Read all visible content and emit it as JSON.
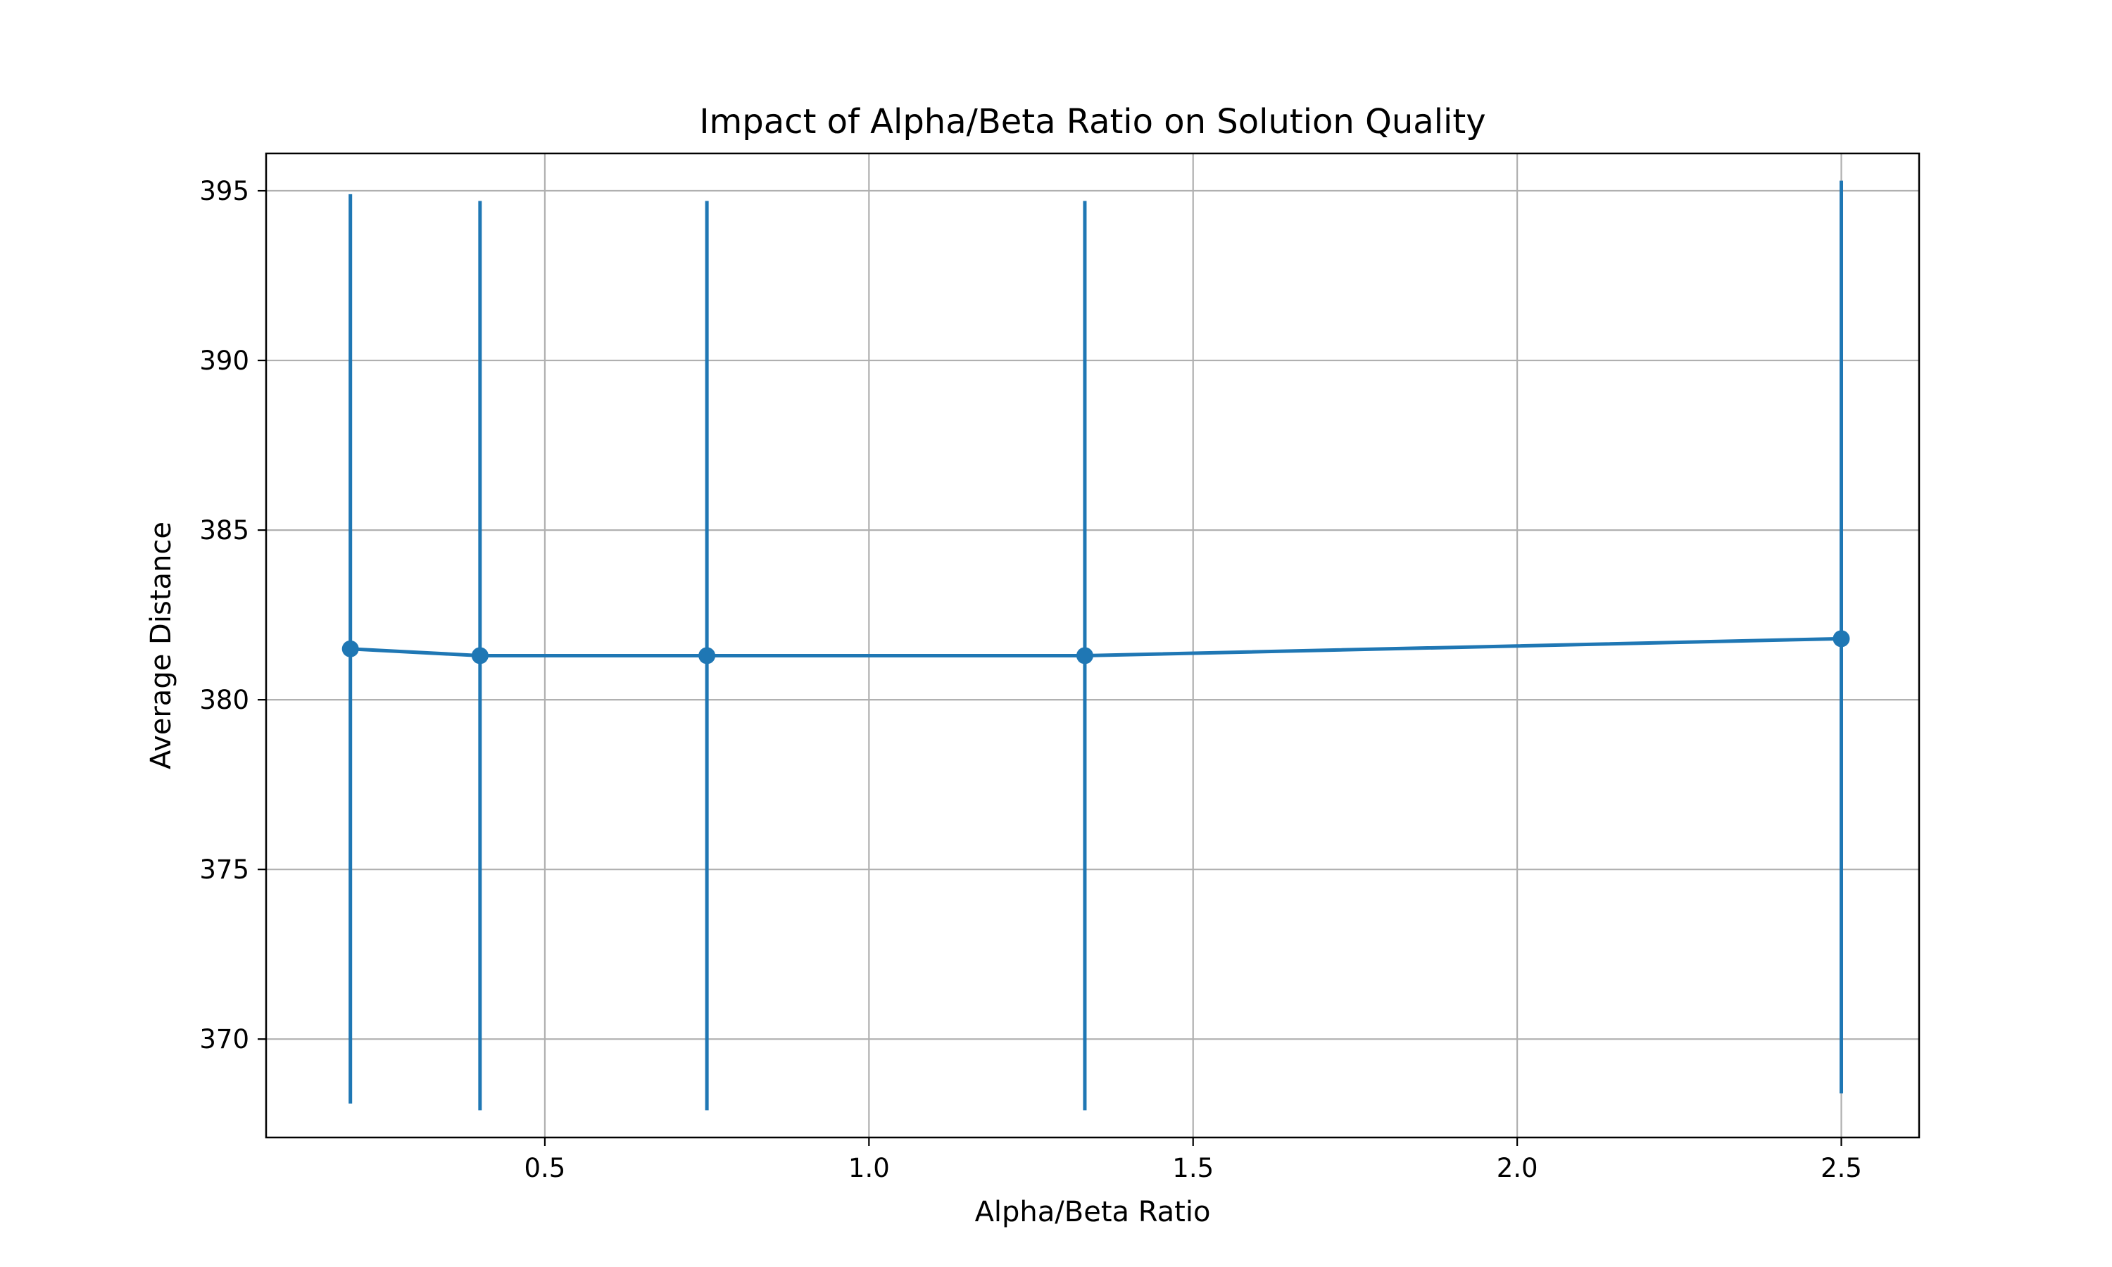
{
  "chart_data": {
    "type": "line",
    "title": "Impact of Alpha/Beta Ratio on Solution Quality",
    "xlabel": "Alpha/Beta Ratio",
    "ylabel": "Average Distance",
    "xlim": [
      0.07,
      2.62
    ],
    "ylim": [
      367.1,
      396.1
    ],
    "x_ticks": [
      0.5,
      1.0,
      1.5,
      2.0,
      2.5
    ],
    "x_tick_labels": [
      "0.5",
      "1.0",
      "1.5",
      "2.0",
      "2.5"
    ],
    "y_ticks": [
      370,
      375,
      380,
      385,
      390,
      395
    ],
    "y_tick_labels": [
      "370",
      "375",
      "380",
      "385",
      "390",
      "395"
    ],
    "grid": true,
    "legend": "none",
    "series": [
      {
        "color": "#1f77b4",
        "marker": "circle",
        "points": [
          {
            "x": 0.2,
            "y": 381.5,
            "error_low": 368.1,
            "error_high": 394.9
          },
          {
            "x": 0.4,
            "y": 381.3,
            "error_low": 367.9,
            "error_high": 394.7
          },
          {
            "x": 0.75,
            "y": 381.3,
            "error_low": 367.9,
            "error_high": 394.7
          },
          {
            "x": 1.333,
            "y": 381.3,
            "error_low": 367.9,
            "error_high": 394.7
          },
          {
            "x": 2.5,
            "y": 381.8,
            "error_low": 368.4,
            "error_high": 395.3
          }
        ]
      }
    ],
    "colors": {
      "frame": "#000000",
      "grid": "#b0b0b0",
      "background": "#ffffff"
    }
  }
}
